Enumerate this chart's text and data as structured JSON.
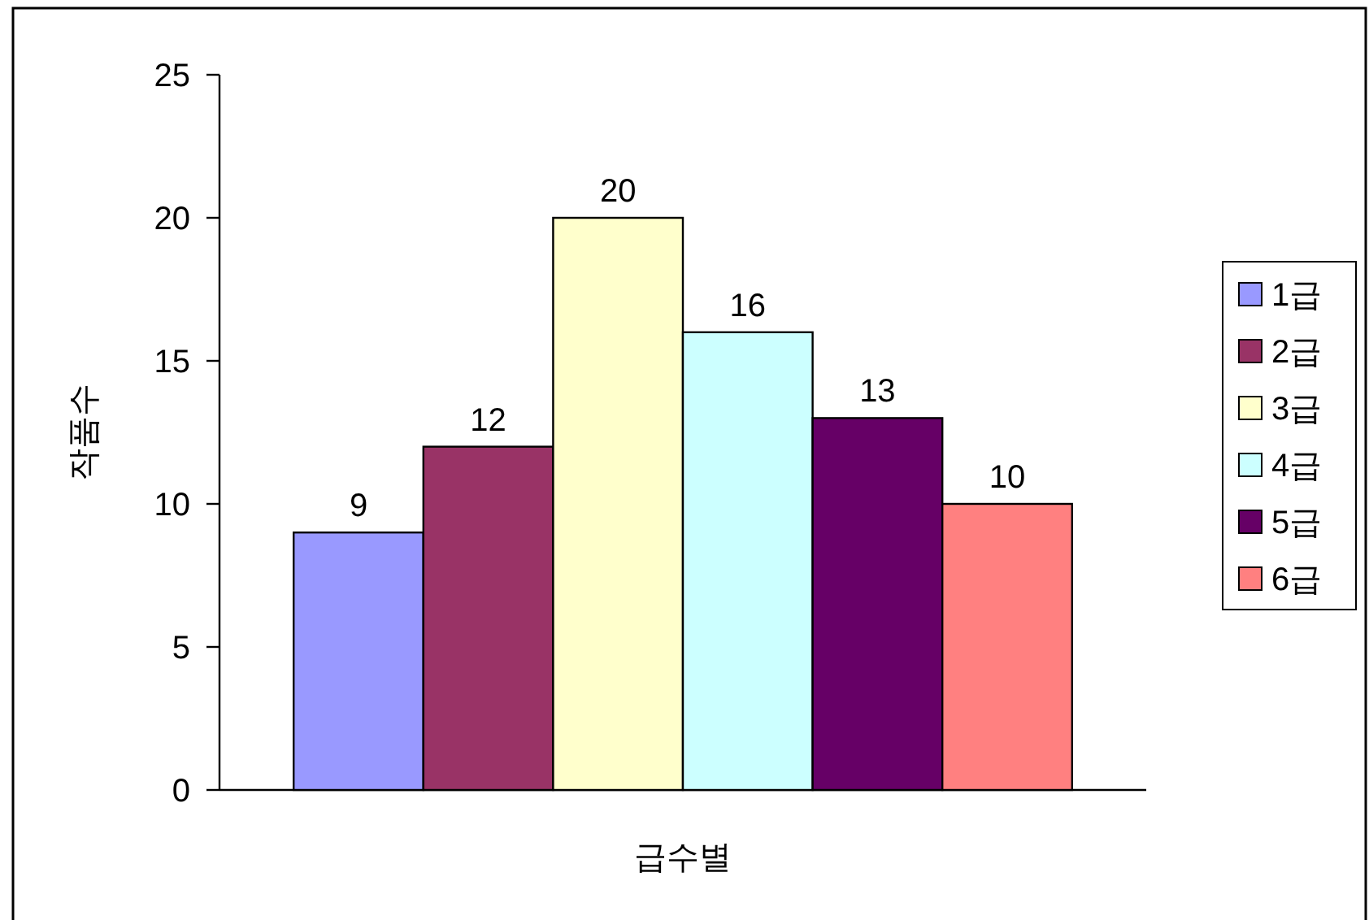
{
  "chart_data": {
    "type": "bar",
    "xlabel": "급수별",
    "ylabel": "작품수",
    "categories": [
      null
    ],
    "series": [
      {
        "name": "1급",
        "color": "#9999ff",
        "values": [
          9
        ]
      },
      {
        "name": "2급",
        "color": "#993366",
        "values": [
          12
        ]
      },
      {
        "name": "3급",
        "color": "#ffffcc",
        "values": [
          20
        ]
      },
      {
        "name": "4급",
        "color": "#ccffff",
        "values": [
          16
        ]
      },
      {
        "name": "5급",
        "color": "#660066",
        "values": [
          13
        ]
      },
      {
        "name": "6급",
        "color": "#ff8080",
        "values": [
          10
        ]
      }
    ],
    "ylim": [
      0,
      25
    ],
    "yticks": [
      0,
      5,
      10,
      15,
      20,
      25
    ],
    "data_labels": true,
    "legend": "right"
  }
}
